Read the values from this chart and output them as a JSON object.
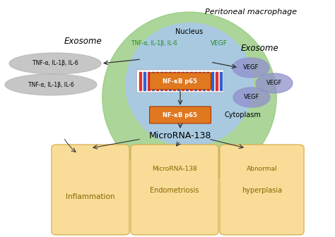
{
  "bg_color": "#ffffff",
  "peritoneal_label": "Peritoneal macrophage",
  "exosome_left_label": "Exosome",
  "exosome_right_label": "Exosome",
  "nucleus_label": "Nucleus",
  "cytoplasm_label": "Cytoplasm",
  "microrna_label": "MicroRNA-138",
  "nfkb_label": "NF-κB p65",
  "vegf_label": "VEGF",
  "tnf_label": "TNF-α, IL-1β, IL-6",
  "tnf_label2": "TNF-α, IL-1β, IL-6",
  "tnf_nucleus_label": "TNF-α, IL-1β, IL-6",
  "vegf_nucleus_label": "VEGF",
  "green_circle_color": "#90c878",
  "blue_circle_color": "#a8c8e8",
  "orange_box_color": "#e07820",
  "yellow_box_color": "#f8dc98",
  "yellow_box_edge": "#d4a840",
  "gray_ellipse_color": "#b8b8b8",
  "vegf_circle_color": "#9090cc",
  "dna_color_red": "#dd2222",
  "dna_color_blue": "#2255cc",
  "box_text_color": "#886600",
  "green_text_color": "#228822",
  "arrow_color": "#333333"
}
